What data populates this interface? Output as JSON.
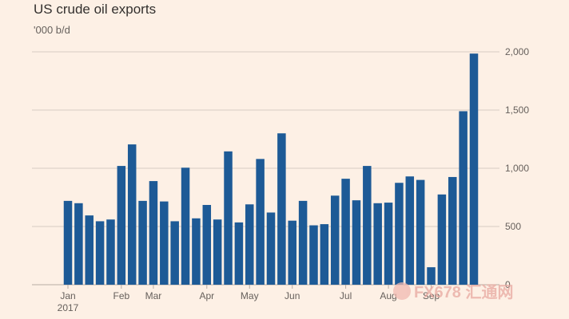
{
  "title": "US crude oil exports",
  "subtitle": "'000 b/d",
  "watermark": {
    "text": "FX678 汇通网"
  },
  "colors": {
    "bar": "#1d5a96",
    "grid": "#d8ccc2",
    "background": "#fdf0e5"
  },
  "chart_data": {
    "type": "bar",
    "title": "US crude oil exports",
    "ylabel": "'000 b/d",
    "ylim": [
      0,
      2000
    ],
    "yticks": [
      {
        "value": 2000,
        "label": "2,000"
      },
      {
        "value": 1500,
        "label": "1,500"
      },
      {
        "value": 1000,
        "label": "1,000"
      },
      {
        "value": 500,
        "label": "500"
      },
      {
        "value": 0,
        "label": "0"
      }
    ],
    "grid": true,
    "values": [
      720,
      700,
      595,
      545,
      560,
      1020,
      1205,
      720,
      890,
      715,
      545,
      1005,
      570,
      685,
      560,
      1145,
      535,
      690,
      1080,
      620,
      1300,
      550,
      720,
      510,
      520,
      765,
      910,
      725,
      1020,
      700,
      705,
      875,
      930,
      900,
      150,
      775,
      925,
      1490,
      1985
    ],
    "xticks": [
      {
        "index": 0,
        "label": "Jan",
        "sublabel": "2017"
      },
      {
        "index": 5,
        "label": "Feb"
      },
      {
        "index": 8,
        "label": "Mar"
      },
      {
        "index": 13,
        "label": "Apr"
      },
      {
        "index": 17,
        "label": "May"
      },
      {
        "index": 21,
        "label": "Jun"
      },
      {
        "index": 26,
        "label": "Jul"
      },
      {
        "index": 30,
        "label": "Aug"
      },
      {
        "index": 34,
        "label": "Sep"
      }
    ]
  }
}
